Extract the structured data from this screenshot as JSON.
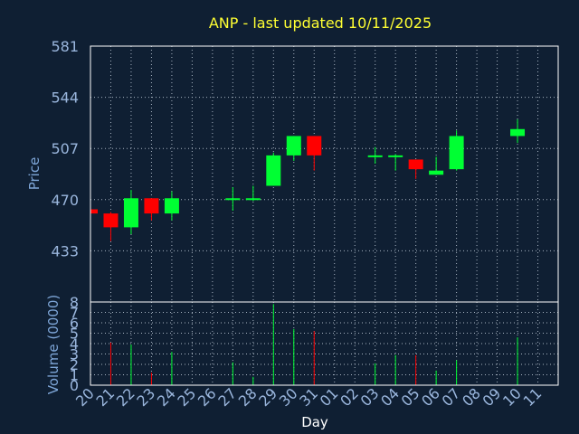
{
  "chart_data": {
    "type": "candlestick",
    "title": "ANP - last updated 10/11/2025",
    "xlabel": "Day",
    "ylabel_price": "Price",
    "ylabel_volume": "Volume (0000)",
    "price_ylim": [
      396,
      581
    ],
    "price_yticks": [
      "581",
      "544",
      "507",
      "470",
      "433"
    ],
    "volume_ylim": [
      0,
      8
    ],
    "volume_yticks": [
      "0",
      "1",
      "2",
      "3",
      "4",
      "5",
      "6",
      "7",
      "8"
    ],
    "grid": true,
    "x_ticks": [
      "20",
      "21",
      "22",
      "23",
      "24",
      "25",
      "26",
      "27",
      "28",
      "29",
      "30",
      "31",
      "01",
      "02",
      "03",
      "04",
      "05",
      "06",
      "07",
      "08",
      "09",
      "10",
      "11"
    ],
    "candles": [
      {
        "day": "20",
        "open": 463,
        "high": 463,
        "low": 460,
        "close": 460,
        "volume": 0
      },
      {
        "day": "21",
        "open": 460,
        "high": 461,
        "low": 440,
        "close": 450,
        "volume": 4.1
      },
      {
        "day": "22",
        "open": 450,
        "high": 477,
        "low": 445,
        "close": 471,
        "volume": 3.9
      },
      {
        "day": "23",
        "open": 471,
        "high": 471,
        "low": 455,
        "close": 460,
        "volume": 1.2
      },
      {
        "day": "24",
        "open": 460,
        "high": 476,
        "low": 455,
        "close": 471,
        "volume": 3.2
      },
      {
        "day": "27",
        "open": 470,
        "high": 479,
        "low": 462,
        "close": 471,
        "volume": 2.2
      },
      {
        "day": "28",
        "open": 470,
        "high": 480,
        "low": 469,
        "close": 471,
        "volume": 0.8
      },
      {
        "day": "29",
        "open": 480,
        "high": 504,
        "low": 480,
        "close": 502,
        "volume": 7.8
      },
      {
        "day": "30",
        "open": 502,
        "high": 516,
        "low": 498,
        "close": 516,
        "volume": 5.4
      },
      {
        "day": "31",
        "open": 516,
        "high": 516,
        "low": 491,
        "close": 502,
        "volume": 5.2
      },
      {
        "day": "03",
        "open": 501,
        "high": 508,
        "low": 496,
        "close": 502,
        "volume": 2.1
      },
      {
        "day": "04",
        "open": 501,
        "high": 503,
        "low": 491,
        "close": 502,
        "volume": 2.9
      },
      {
        "day": "05",
        "open": 499,
        "high": 499,
        "low": 485,
        "close": 492,
        "volume": 2.9
      },
      {
        "day": "06",
        "open": 488,
        "high": 501,
        "low": 488,
        "close": 491,
        "volume": 1.4
      },
      {
        "day": "07",
        "open": 492,
        "high": 520,
        "low": 491,
        "close": 516,
        "volume": 2.4
      },
      {
        "day": "10",
        "open": 516,
        "high": 528,
        "low": 511,
        "close": 521,
        "volume": 4.6
      }
    ],
    "colors": {
      "up": "#00ff33",
      "down": "#ff0000",
      "title": "#ffff33",
      "axis_text": "#7ea6d8",
      "tick_text": "#9ab6dd",
      "background": "#0f1f33",
      "plot_border": "#ffffff",
      "grid": "#a8b4c2"
    }
  }
}
